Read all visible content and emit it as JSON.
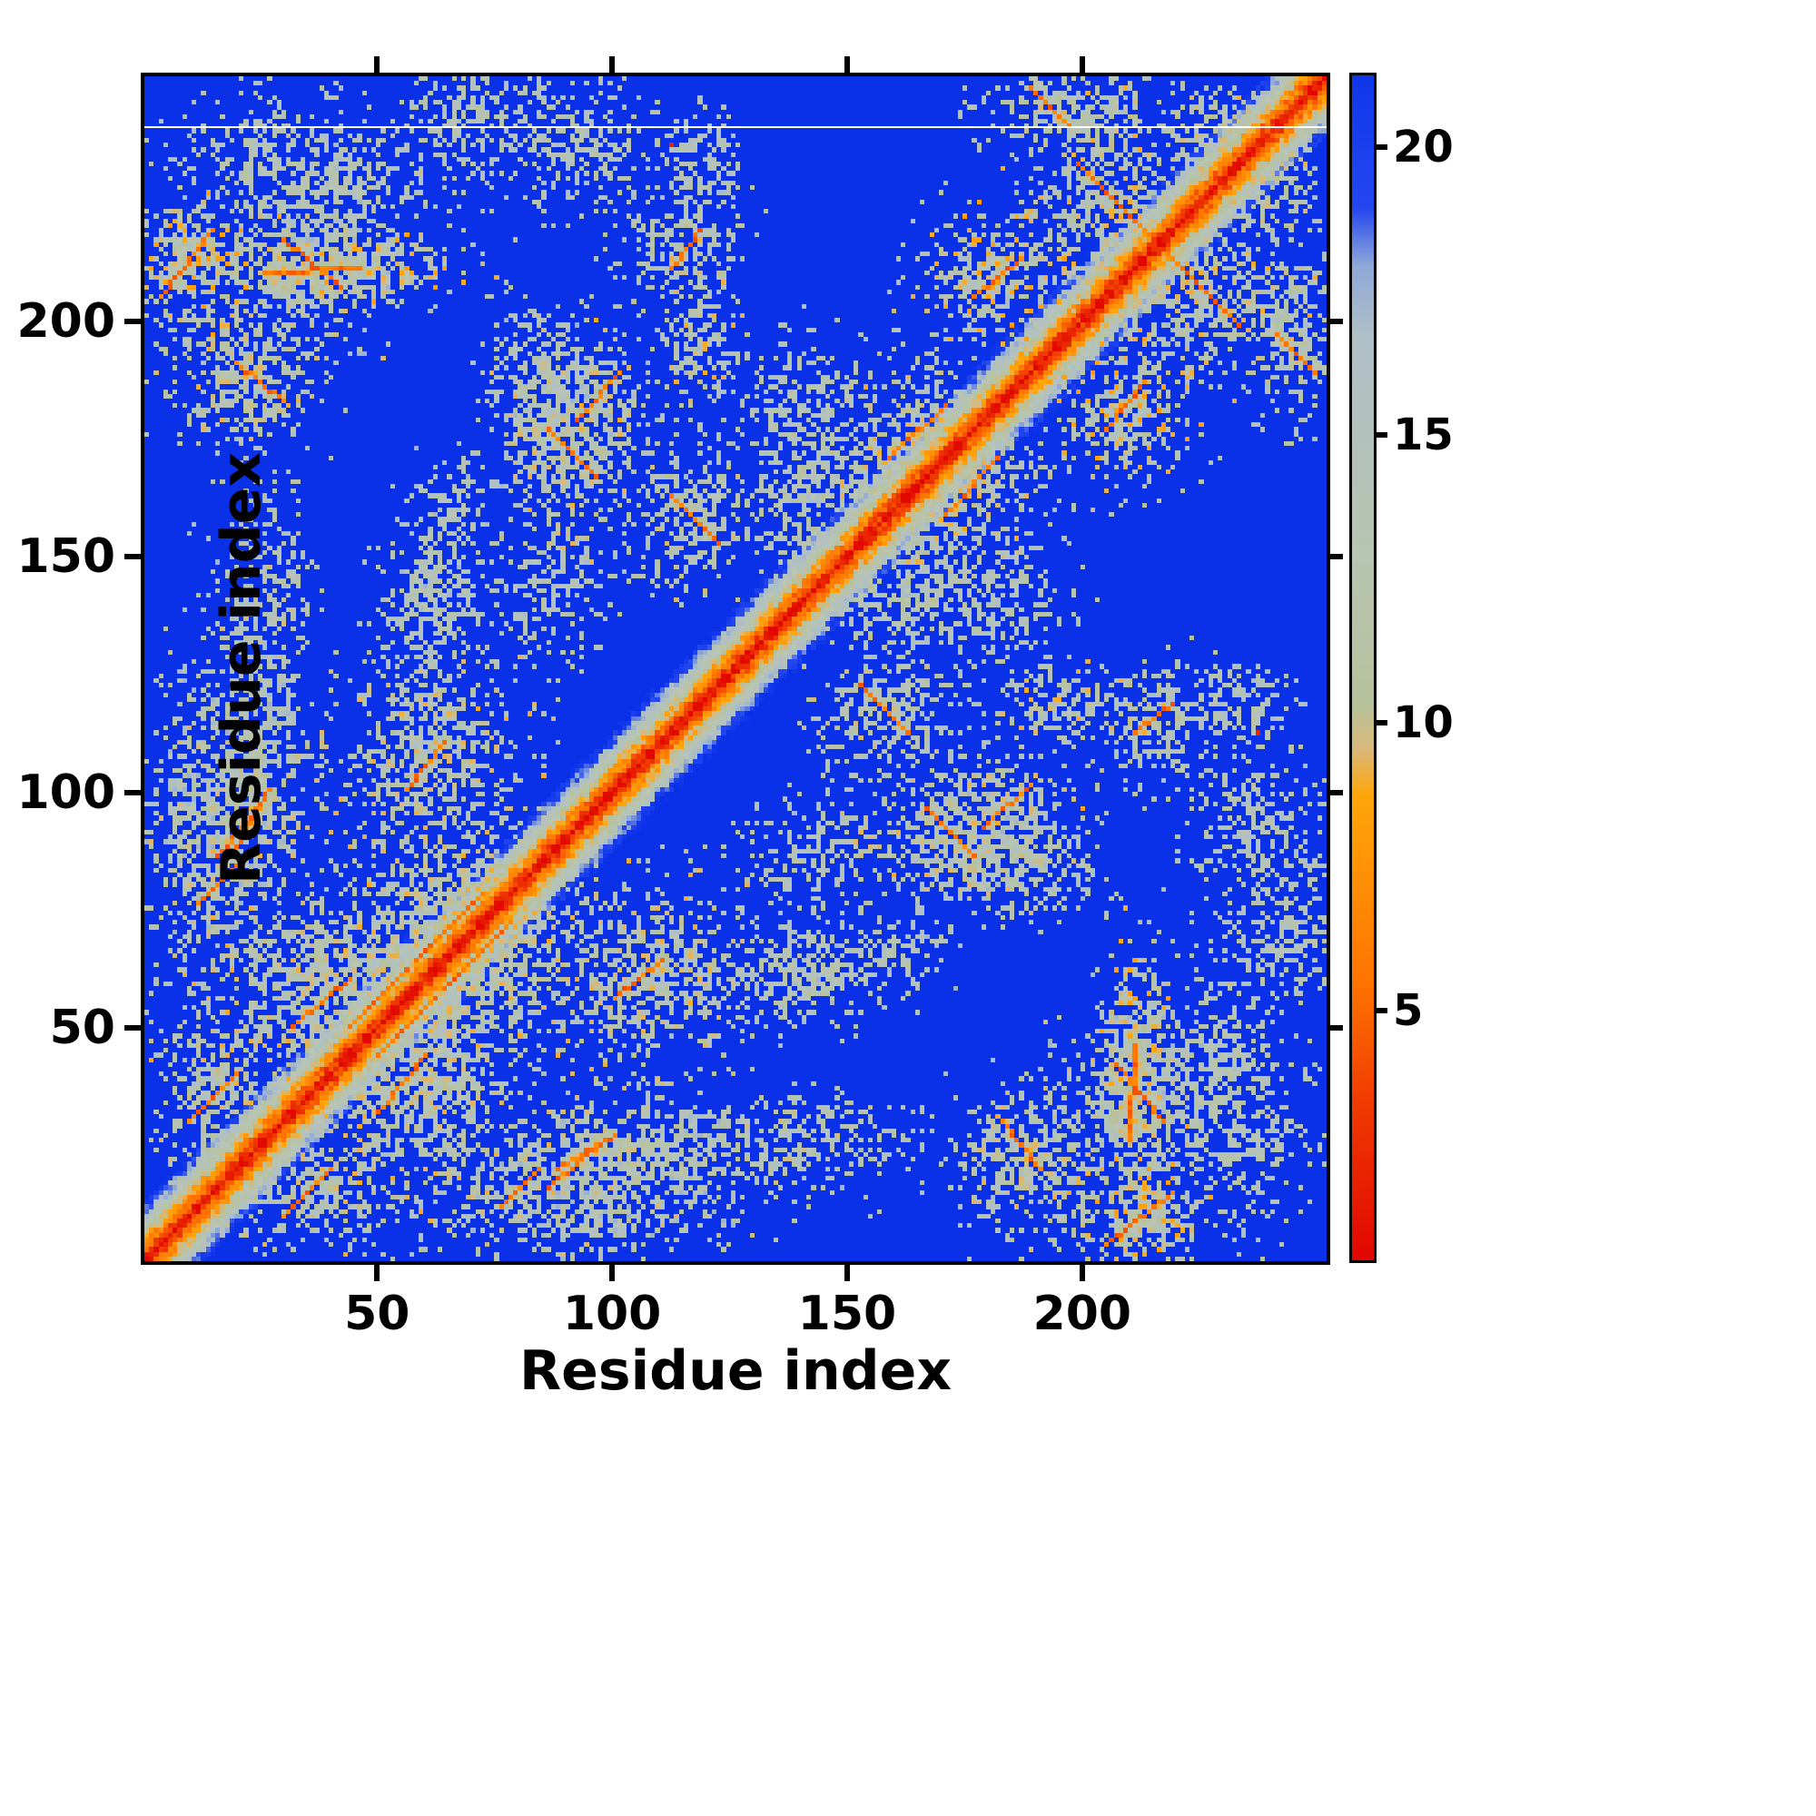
{
  "chart_data": {
    "type": "heatmap",
    "title": "",
    "xlabel": "Residue index",
    "ylabel": "Residue index",
    "x_range": [
      1,
      252
    ],
    "y_range": [
      1,
      252
    ],
    "x_ticks": [
      50,
      100,
      150,
      200
    ],
    "y_ticks": [
      50,
      100,
      150,
      200
    ],
    "grid": false,
    "legend": "colorbar-right",
    "colorbar": {
      "orientation": "vertical",
      "ticks": [
        5,
        10,
        15,
        20
      ],
      "range": [
        0.7,
        21.3
      ]
    },
    "colormap": [
      {
        "v": 0.7,
        "c": "#e10600"
      },
      {
        "v": 3.5,
        "c": "#f03c00"
      },
      {
        "v": 5.5,
        "c": "#ff7300"
      },
      {
        "v": 8.8,
        "c": "#ffa60a"
      },
      {
        "v": 9.6,
        "c": "#d9b87a"
      },
      {
        "v": 10.4,
        "c": "#b6c29c"
      },
      {
        "v": 13.0,
        "c": "#b9c4b2"
      },
      {
        "v": 16.8,
        "c": "#aebfc6"
      },
      {
        "v": 18.0,
        "c": "#8fa8d8"
      },
      {
        "v": 19.0,
        "c": "#2447f0"
      },
      {
        "v": 22.0,
        "c": "#0a31e8"
      }
    ],
    "matrix": {
      "description": "Symmetric inter-residue distance map; red = short distance (contact), blue = far. Strong red main diagonal with orange/sage near-diagonal band and symmetric off-diagonal contact clusters.",
      "n": 250,
      "background_value": 22,
      "seed": 1337,
      "diagonal": {
        "core_value": 1.0,
        "slope": 1.7,
        "half_width": 14,
        "jitter": 2.0
      },
      "clusters": [
        {
          "i": [
            3,
            17
          ],
          "j": [
            200,
            222
          ],
          "density": 0.8,
          "dist": 8,
          "spread": 9
        },
        {
          "i": [
            20,
            62
          ],
          "j": [
            204,
            216
          ],
          "density": 0.7,
          "dist": 8.5,
          "spread": 8
        },
        {
          "i": [
            30,
            56
          ],
          "j": [
            219,
            236
          ],
          "density": 0.5,
          "dist": 11,
          "spread": 6
        },
        {
          "i": [
            84,
            102
          ],
          "j": [
            226,
            248
          ],
          "density": 0.5,
          "dist": 11,
          "spread": 6
        },
        {
          "i": [
            110,
            126
          ],
          "j": [
            220,
            242
          ],
          "density": 0.45,
          "dist": 11,
          "spread": 6
        },
        {
          "i": [
            110,
            124
          ],
          "j": [
            188,
            206
          ],
          "density": 0.55,
          "dist": 9,
          "spread": 8
        },
        {
          "i": [
            168,
            190
          ],
          "j": [
            198,
            218
          ],
          "density": 0.75,
          "dist": 8,
          "spread": 9
        },
        {
          "i": [
            190,
            216
          ],
          "j": [
            208,
            238
          ],
          "density": 0.65,
          "dist": 9,
          "spread": 8
        },
        {
          "i": [
            220,
            240
          ],
          "j": [
            226,
            246
          ],
          "density": 0.6,
          "dist": 9,
          "spread": 8
        },
        {
          "i": [
            236,
            250
          ],
          "j": [
            182,
            212
          ],
          "density": 0.6,
          "dist": 10,
          "spread": 7
        },
        {
          "i": [
            152,
            176
          ],
          "j": [
            158,
            188
          ],
          "density": 0.65,
          "dist": 9,
          "spread": 8
        },
        {
          "i": [
            78,
            98
          ],
          "j": [
            154,
            186
          ],
          "density": 0.65,
          "dist": 9,
          "spread": 8
        },
        {
          "i": [
            76,
            92
          ],
          "j": [
            180,
            200
          ],
          "density": 0.45,
          "dist": 11,
          "spread": 6
        },
        {
          "i": [
            104,
            126
          ],
          "j": [
            146,
            168
          ],
          "density": 0.6,
          "dist": 9.5,
          "spread": 7
        },
        {
          "i": [
            128,
            148
          ],
          "j": [
            148,
            170
          ],
          "density": 0.5,
          "dist": 10,
          "spread": 7
        },
        {
          "i": [
            18,
            34
          ],
          "j": [
            116,
            164
          ],
          "density": 0.4,
          "dist": 11,
          "spread": 6
        },
        {
          "i": [
            52,
            68
          ],
          "j": [
            126,
            152
          ],
          "density": 0.45,
          "dist": 11,
          "spread": 6
        },
        {
          "i": [
            76,
            96
          ],
          "j": [
            130,
            154
          ],
          "density": 0.45,
          "dist": 11,
          "spread": 6
        },
        {
          "i": [
            2,
            24
          ],
          "j": [
            70,
            114
          ],
          "density": 0.6,
          "dist": 9.5,
          "spread": 8
        },
        {
          "i": [
            46,
            76
          ],
          "j": [
            90,
            122
          ],
          "density": 0.65,
          "dist": 9,
          "spread": 8
        },
        {
          "i": [
            20,
            56
          ],
          "j": [
            42,
            76
          ],
          "density": 0.7,
          "dist": 9,
          "spread": 8
        },
        {
          "i": [
            54,
            84
          ],
          "j": [
            50,
            84
          ],
          "density": 0.7,
          "dist": 9,
          "spread": 8
        },
        {
          "i": [
            6,
            24
          ],
          "j": [
            22,
            50
          ],
          "density": 0.65,
          "dist": 9,
          "spread": 8
        },
        {
          "i": [
            76,
            136
          ],
          "j": [
            14,
            32
          ],
          "density": 0.55,
          "dist": 9.5,
          "spread": 8
        },
        {
          "i": [
            176,
            200
          ],
          "j": [
            10,
            34
          ],
          "density": 0.65,
          "dist": 9,
          "spread": 8
        },
        {
          "i": [
            198,
            226
          ],
          "j": [
            20,
            50
          ],
          "density": 0.6,
          "dist": 9.5,
          "spread": 8
        },
        {
          "i": [
            222,
            246
          ],
          "j": [
            8,
            42
          ],
          "density": 0.45,
          "dist": 11,
          "spread": 6
        },
        {
          "i": [
            228,
            250
          ],
          "j": [
            56,
            90
          ],
          "density": 0.45,
          "dist": 11,
          "spread": 6
        },
        {
          "i": [
            170,
            192
          ],
          "j": [
            80,
            108
          ],
          "density": 0.55,
          "dist": 9.5,
          "spread": 8
        },
        {
          "i": [
            204,
            222
          ],
          "j": [
            102,
            124
          ],
          "density": 0.55,
          "dist": 10,
          "spread": 7
        },
        {
          "i": [
            174,
            194
          ],
          "j": [
            124,
            152
          ],
          "density": 0.45,
          "dist": 11,
          "spread": 6
        },
        {
          "i": [
            156,
            176
          ],
          "j": [
            134,
            156
          ],
          "density": 0.45,
          "dist": 11,
          "spread": 6
        },
        {
          "i": [
            126,
            158
          ],
          "j": [
            56,
            70
          ],
          "density": 0.35,
          "dist": 11.5,
          "spread": 6
        },
        {
          "i": [
            60,
            72
          ],
          "j": [
            152,
            168
          ],
          "density": 0.45,
          "dist": 11,
          "spread": 6
        }
      ],
      "streaks": [
        {
          "from": [
            4,
            204
          ],
          "to": [
            15,
            218
          ]
        },
        {
          "from": [
            26,
            209
          ],
          "to": [
            46,
            210
          ]
        },
        {
          "from": [
            176,
            204
          ],
          "to": [
            186,
            212
          ]
        },
        {
          "from": [
            198,
            232
          ],
          "to": [
            214,
            216
          ]
        },
        {
          "from": [
            240,
            196
          ],
          "to": [
            248,
            188
          ]
        },
        {
          "from": [
            86,
            176
          ],
          "to": [
            96,
            166
          ]
        },
        {
          "from": [
            112,
            162
          ],
          "to": [
            122,
            152
          ]
        },
        {
          "from": [
            158,
            170
          ],
          "to": [
            170,
            181
          ]
        },
        {
          "from": [
            56,
            100
          ],
          "to": [
            64,
            110
          ]
        },
        {
          "from": [
            16,
            86
          ],
          "to": [
            26,
            98
          ]
        },
        {
          "from": [
            10,
            30
          ],
          "to": [
            20,
            40
          ]
        },
        {
          "from": [
            32,
            50
          ],
          "to": [
            44,
            60
          ]
        },
        {
          "from": [
            58,
            64
          ],
          "to": [
            72,
            78
          ]
        },
        {
          "from": [
            44,
            50
          ],
          "to": [
            56,
            62
          ]
        },
        {
          "from": [
            88,
            20
          ],
          "to": [
            100,
            27
          ]
        },
        {
          "from": [
            182,
            30
          ],
          "to": [
            190,
            20
          ]
        },
        {
          "from": [
            206,
            42
          ],
          "to": [
            216,
            30
          ]
        },
        {
          "from": [
            178,
            92
          ],
          "to": [
            188,
            101
          ]
        },
        {
          "from": [
            210,
            112
          ],
          "to": [
            218,
            118
          ]
        },
        {
          "from": [
            12,
            76
          ],
          "to": [
            20,
            84
          ]
        }
      ],
      "points": [
        {
          "i": 112,
          "j": 236,
          "value": 2.2
        }
      ],
      "artifact_line_row": 240
    }
  },
  "figure": {
    "background": "#ffffff",
    "axis_color": "#000000"
  }
}
